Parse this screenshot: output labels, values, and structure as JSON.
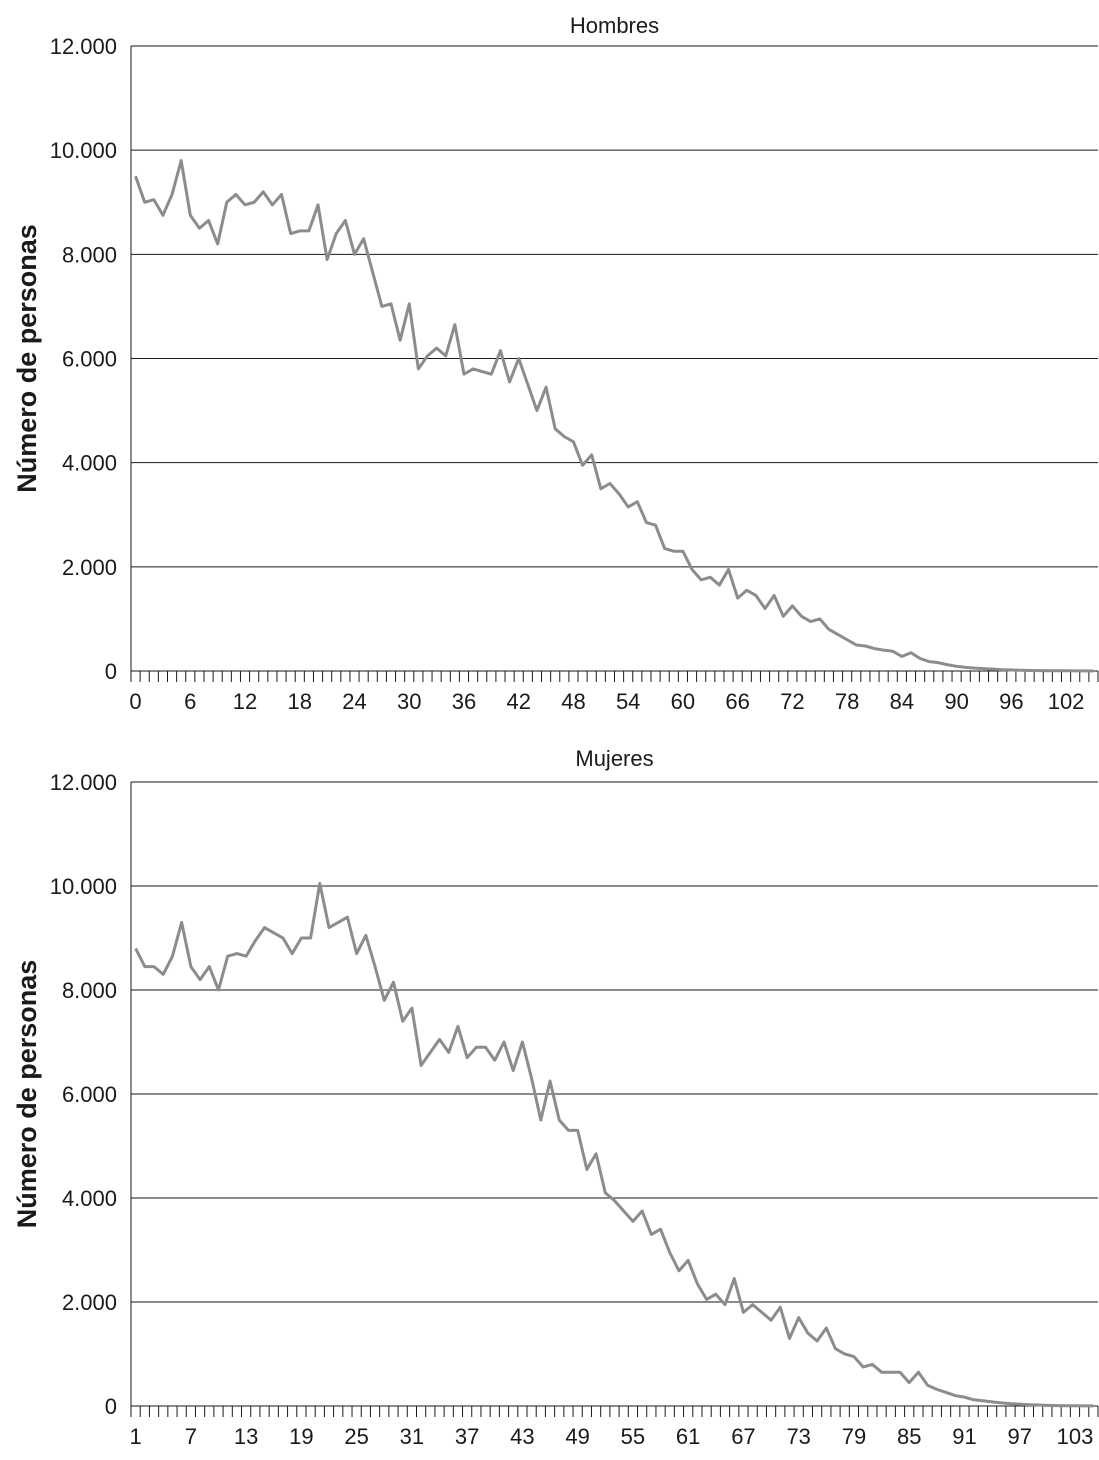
{
  "chart_data": [
    {
      "type": "line",
      "title": "Hombres",
      "ylabel": "Número de personas",
      "xlabel": "",
      "ylim": [
        0,
        12000
      ],
      "grid": "horizontal",
      "y_ticks": [
        0,
        2000,
        4000,
        6000,
        8000,
        10000,
        12000
      ],
      "y_tick_labels": [
        "0",
        "2.000",
        "4.000",
        "6.000",
        "8.000",
        "10.000",
        "12.000"
      ],
      "x_start": 0,
      "x_end": 105,
      "x_tick_labels": [
        "0",
        "6",
        "12",
        "18",
        "24",
        "30",
        "36",
        "42",
        "48",
        "54",
        "60",
        "66",
        "72",
        "78",
        "84",
        "90",
        "96",
        "102"
      ],
      "x_tick_values": [
        0,
        6,
        12,
        18,
        24,
        30,
        36,
        42,
        48,
        54,
        60,
        66,
        72,
        78,
        84,
        90,
        96,
        102
      ],
      "series": [
        {
          "color": "#8c8c8c",
          "values": [
            9500,
            9000,
            9050,
            8750,
            9150,
            9800,
            8750,
            8500,
            8650,
            8200,
            9000,
            9150,
            8950,
            9000,
            9200,
            8950,
            9150,
            8400,
            8450,
            8450,
            8950,
            7900,
            8400,
            8650,
            8000,
            8300,
            7650,
            7000,
            7050,
            6350,
            7050,
            5800,
            6050,
            6200,
            6050,
            6650,
            5700,
            5800,
            5750,
            5700,
            6150,
            5550,
            6000,
            5500,
            5000,
            5450,
            4650,
            4500,
            4400,
            3950,
            4150,
            3500,
            3600,
            3400,
            3150,
            3250,
            2850,
            2800,
            2350,
            2300,
            2300,
            1950,
            1750,
            1800,
            1650,
            1950,
            1400,
            1550,
            1450,
            1200,
            1450,
            1050,
            1250,
            1050,
            950,
            1000,
            800,
            700,
            600,
            500,
            480,
            430,
            400,
            380,
            280,
            350,
            240,
            180,
            160,
            120,
            90,
            70,
            55,
            45,
            35,
            25,
            20,
            15,
            10,
            8,
            6,
            5,
            4,
            3,
            2,
            1
          ]
        }
      ]
    },
    {
      "type": "line",
      "title": "Mujeres",
      "ylabel": "Número de personas",
      "xlabel": "",
      "ylim": [
        0,
        12000
      ],
      "grid": "horizontal",
      "y_ticks": [
        0,
        2000,
        4000,
        6000,
        8000,
        10000,
        12000
      ],
      "y_tick_labels": [
        "0",
        "2.000",
        "4.000",
        "6.000",
        "8.000",
        "10.000",
        "12.000"
      ],
      "x_start": 1,
      "x_end": 105,
      "x_tick_labels": [
        "1",
        "7",
        "13",
        "19",
        "25",
        "31",
        "37",
        "43",
        "49",
        "55",
        "61",
        "67",
        "73",
        "79",
        "85",
        "91",
        "97",
        "103"
      ],
      "x_tick_values": [
        1,
        7,
        13,
        19,
        25,
        31,
        37,
        43,
        49,
        55,
        61,
        67,
        73,
        79,
        85,
        91,
        97,
        103
      ],
      "series": [
        {
          "color": "#8c8c8c",
          "values": [
            8800,
            8450,
            8450,
            8300,
            8650,
            9300,
            8450,
            8200,
            8450,
            8000,
            8650,
            8700,
            8650,
            8950,
            9200,
            9100,
            9000,
            8700,
            9000,
            9000,
            10050,
            9200,
            9300,
            9400,
            8700,
            9050,
            8450,
            7800,
            8150,
            7400,
            7650,
            6550,
            6800,
            7050,
            6800,
            7300,
            6700,
            6900,
            6900,
            6650,
            7000,
            6450,
            7000,
            6300,
            5500,
            6250,
            5500,
            5300,
            5300,
            4550,
            4850,
            4100,
            3950,
            3750,
            3550,
            3750,
            3300,
            3400,
            2950,
            2600,
            2800,
            2350,
            2050,
            2150,
            1950,
            2450,
            1800,
            1950,
            1800,
            1650,
            1900,
            1300,
            1700,
            1400,
            1250,
            1500,
            1100,
            1000,
            950,
            750,
            800,
            650,
            650,
            650,
            450,
            650,
            400,
            320,
            260,
            200,
            170,
            120,
            100,
            80,
            60,
            45,
            35,
            25,
            18,
            12,
            8,
            6,
            4,
            3,
            2
          ]
        }
      ]
    }
  ]
}
